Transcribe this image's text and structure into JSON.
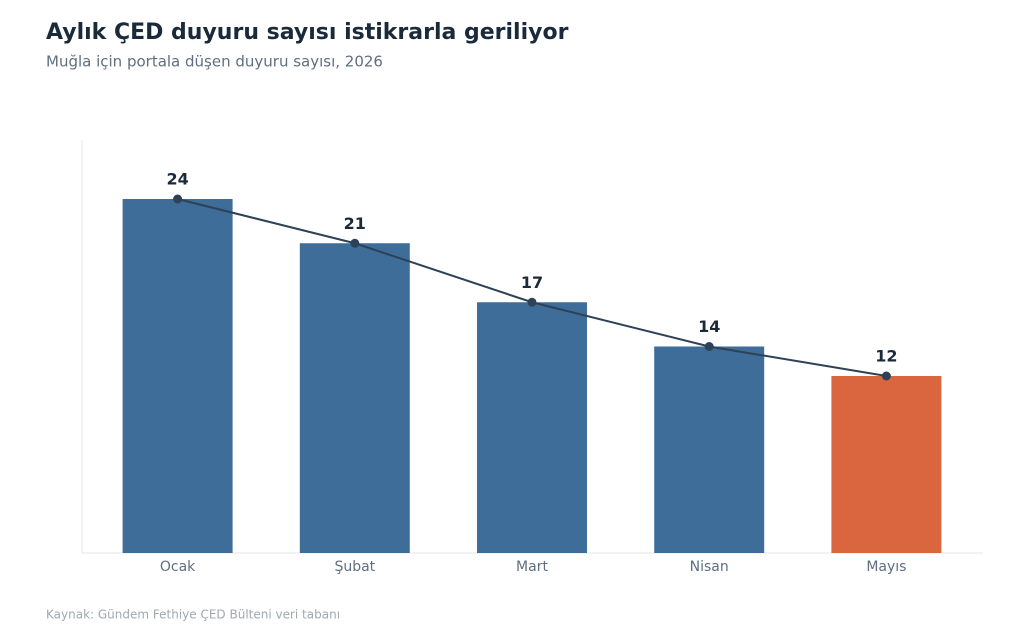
{
  "chart_data": {
    "type": "bar",
    "title": "Aylık ÇED duyuru sayısı istikrarla geriliyor",
    "subtitle": "Muğla için portala düşen duyuru sayısı, 2026",
    "source": "Kaynak: Gündem Fethiye ÇED Bülteni veri tabanı",
    "categories": [
      "Ocak",
      "Şubat",
      "Mart",
      "Nisan",
      "Mayıs"
    ],
    "values": [
      24,
      21,
      17,
      14,
      12
    ],
    "colors": [
      "#3e6d99",
      "#3e6d99",
      "#3e6d99",
      "#3e6d99",
      "#d9663f"
    ],
    "line_color": "#2d4157",
    "ylim": [
      0,
      28
    ]
  }
}
